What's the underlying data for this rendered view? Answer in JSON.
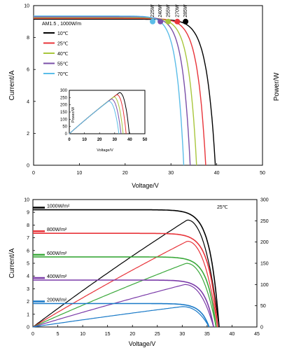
{
  "chart_data": [
    {
      "type": "line",
      "title": "",
      "condition_label": "AM1.5 , 1000W/m",
      "xlabel": "Voltage/V",
      "ylabel": "Current/A",
      "y2label": "Power/W",
      "xlim": [
        0,
        50
      ],
      "ylim": [
        0,
        10
      ],
      "xticks": [
        "0",
        "10",
        "20",
        "30",
        "40",
        "50"
      ],
      "yticks": [
        "0",
        "2",
        "4",
        "6",
        "8",
        "10"
      ],
      "grid": false,
      "legend": "top-left",
      "series": [
        {
          "name": "10℃",
          "color": "#000000",
          "isc": 9.15,
          "voc": 39.7,
          "vmp": 33.2,
          "pmax_label": "285W",
          "pmax": 285
        },
        {
          "name": "25℃",
          "color": "#e8343a",
          "isc": 9.2,
          "voc": 37.6,
          "vmp": 31.4,
          "pmax_label": "270W",
          "pmax": 270
        },
        {
          "name": "40℃",
          "color": "#a8c63c",
          "isc": 9.25,
          "voc": 35.6,
          "vmp": 29.4,
          "pmax_label": "255W",
          "pmax": 255
        },
        {
          "name": "55℃",
          "color": "#7a4fa8",
          "isc": 9.3,
          "voc": 34.2,
          "vmp": 27.7,
          "pmax_label": "240W",
          "pmax": 240
        },
        {
          "name": "70℃",
          "color": "#5bbde8",
          "isc": 9.35,
          "voc": 32.8,
          "vmp": 26.0,
          "pmax_label": "225W",
          "pmax": 225
        }
      ],
      "inset": {
        "type": "line",
        "xlabel": "Voltage/V",
        "ylabel": "Power/W",
        "xlim": [
          0,
          50
        ],
        "ylim": [
          0,
          300
        ],
        "xticks": [
          "0",
          "10",
          "20",
          "30",
          "40",
          "50"
        ],
        "yticks": [
          "0",
          "50",
          "100",
          "150",
          "200",
          "250",
          "300"
        ]
      }
    },
    {
      "type": "line",
      "title": "",
      "condition_label": "25℃",
      "xlabel": "Voltage/V",
      "ylabel": "Current/A",
      "y2label": "",
      "xlim": [
        0,
        45
      ],
      "ylim": [
        0,
        10
      ],
      "y2lim": [
        0,
        300
      ],
      "xticks": [
        "0",
        "5",
        "10",
        "15",
        "20",
        "25",
        "30",
        "35",
        "40",
        "45"
      ],
      "yticks": [
        "0",
        "1",
        "2",
        "3",
        "4",
        "5",
        "6",
        "7",
        "8",
        "9",
        "10"
      ],
      "y2ticks": [
        "0",
        "50",
        "100",
        "150",
        "200",
        "250",
        "300"
      ],
      "grid": false,
      "legend": "left",
      "series": [
        {
          "name": "1000W/m²",
          "color": "#000000",
          "isc": 9.2,
          "voc": 37.4,
          "vmp": 31.0,
          "pmax": 252
        },
        {
          "name": "800W/m²",
          "color": "#e8343a",
          "isc": 7.35,
          "voc": 37.1,
          "vmp": 31.0,
          "pmax": 202
        },
        {
          "name": "600W/m²",
          "color": "#3aa83a",
          "isc": 5.5,
          "voc": 36.8,
          "vmp": 30.8,
          "pmax": 150
        },
        {
          "name": "400W/m²",
          "color": "#7a3aa8",
          "isc": 3.68,
          "voc": 36.3,
          "vmp": 30.5,
          "pmax": 100
        },
        {
          "name": "200W/m²",
          "color": "#1a7ac8",
          "isc": 1.84,
          "voc": 35.4,
          "vmp": 30.0,
          "pmax": 48
        }
      ]
    }
  ]
}
